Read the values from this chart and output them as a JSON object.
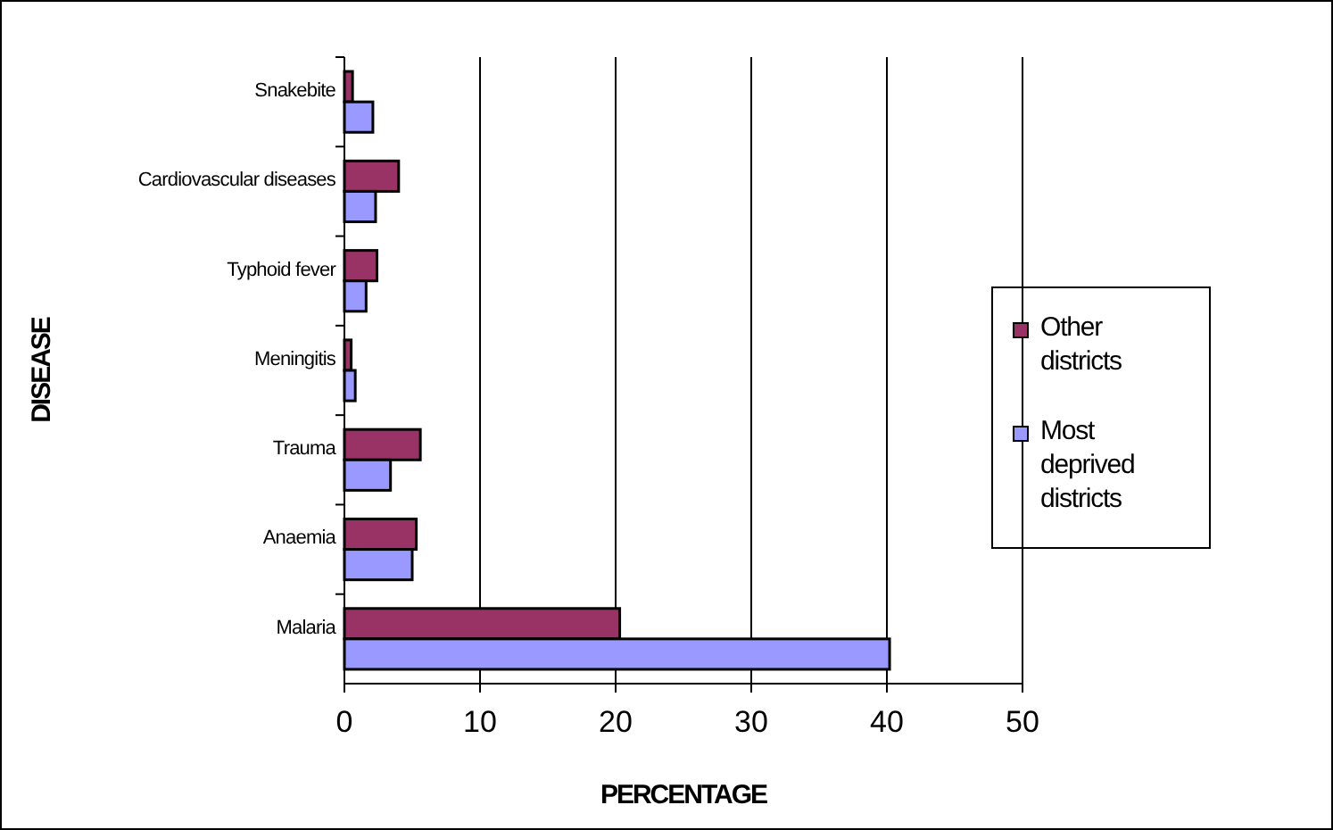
{
  "chart_data": {
    "type": "bar",
    "orientation": "horizontal",
    "xlabel": "PERCENTAGE",
    "ylabel": "DISEASE",
    "categories": [
      "Snakebite",
      "Cardiovascular diseases",
      "Typhoid fever",
      "Meningitis",
      "Trauma",
      "Anaemia",
      "Malaria"
    ],
    "series": [
      {
        "name": "Other districts",
        "color": "#993366",
        "values": [
          0.6,
          4.0,
          2.4,
          0.5,
          5.6,
          5.3,
          20.3
        ]
      },
      {
        "name": "Most deprived districts",
        "color": "#9999ff",
        "values": [
          2.1,
          2.3,
          1.6,
          0.8,
          3.4,
          5.0,
          40.2
        ]
      }
    ],
    "xlim": [
      0,
      50
    ],
    "xticks": [
      0,
      10,
      20,
      30,
      40,
      50
    ],
    "grid": "x",
    "legend": "right"
  }
}
